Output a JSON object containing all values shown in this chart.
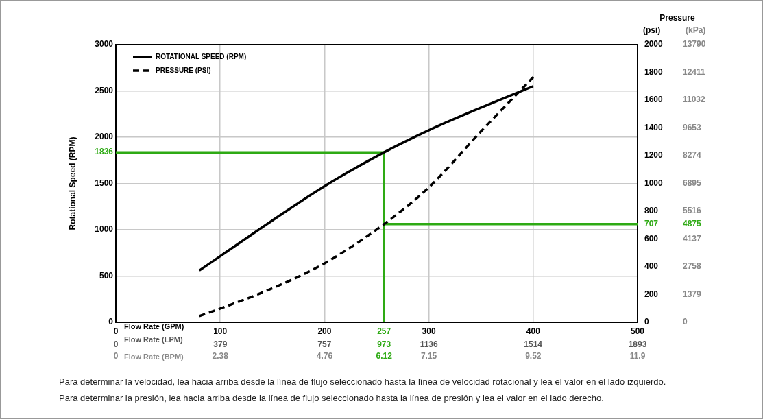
{
  "chart_data": {
    "type": "line",
    "xlabel": "Flow Rate (GPM)",
    "x2label": "Flow Rate (LPM)",
    "ylabel": "Rotational Speed (RPM)",
    "y2label": "(psi)",
    "y3label": "(kPa)",
    "xlim": [
      0,
      500
    ],
    "xticks": [
      0,
      100,
      200,
      257,
      300,
      400,
      500
    ],
    "x2lim": [
      0,
      1893
    ],
    "x2ticks": [
      0,
      379,
      757,
      973,
      1136,
      1514,
      1893
    ],
    "ylim": [
      0,
      3000
    ],
    "yticks": [
      0,
      500,
      1000,
      1500,
      1836,
      2000,
      2500,
      3000
    ],
    "y2lim": [
      0,
      2000
    ],
    "y2ticks": [
      0,
      200,
      400,
      600,
      707,
      800,
      1000,
      1200,
      1400,
      1600,
      1800,
      2000
    ],
    "y3lim": [
      0,
      13790
    ],
    "y3ticks": [
      0,
      1379,
      2758,
      4137,
      4875,
      5516,
      6895,
      8274,
      9653,
      11032,
      12411,
      13790
    ],
    "series": [
      {
        "name": "ROTATIONAL SPEED (RPM)",
        "color": "#000000",
        "line_style": "solid",
        "x": [
          80,
          100,
          150,
          200,
          257,
          300,
          350,
          400
        ],
        "values": [
          560,
          714,
          1100,
          1471,
          1836,
          2075,
          2319,
          2550
        ]
      },
      {
        "name": "PRESSURE (PSI)",
        "color": "#000000",
        "line_style": "dashed",
        "axis": "y2",
        "x": [
          80,
          100,
          150,
          200,
          257,
          300,
          350,
          400
        ],
        "values": [
          45,
          99,
          245,
          425,
          707,
          972,
          1375,
          1765
        ]
      }
    ],
    "ref_lines": [
      {
        "axis": "x",
        "value": 257,
        "color": "#2eaa14"
      },
      {
        "axis": "y",
        "value": 1836,
        "color": "#2eaa14"
      },
      {
        "axis": "y2",
        "value": 707,
        "color": "#2eaa14"
      }
    ],
    "annotations": [
      "Pressure",
      "Flow Rate (BPM)",
      "0",
      "2.38",
      "4.76",
      "6.12",
      "7.15",
      "9.52",
      "11.9",
      "Para determinar la velocidad, lea hacia arriba desde la línea de flujo seleccionado hasta la línea de velocidad rotacional y lea el valor en el lado izquierdo.",
      "Para determinar la presión, lea hacia arriba desde la línea de flujo seleccionado hasta la línea de presión y lea el valor en el lado derecho."
    ],
    "grid": true,
    "legend": "top left",
    "marker": "none"
  }
}
